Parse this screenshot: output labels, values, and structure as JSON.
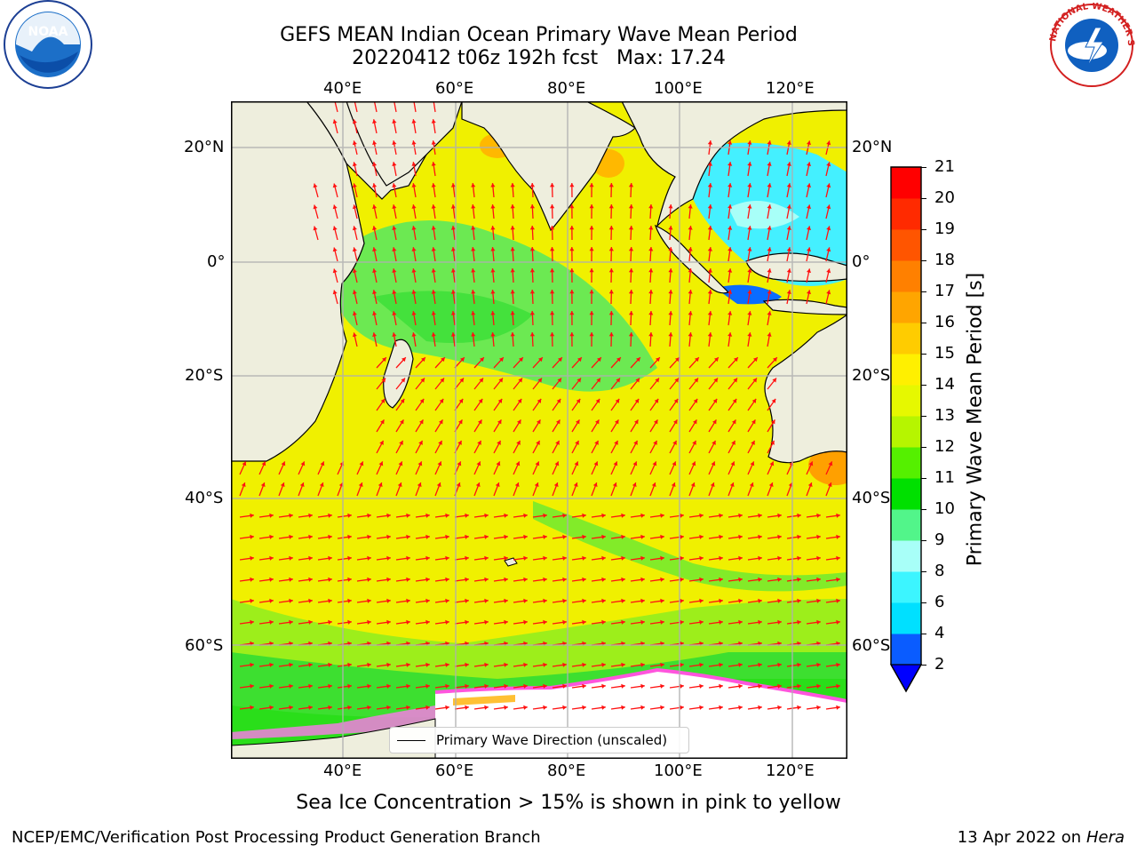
{
  "header": {
    "title_line1": "GEFS MEAN Indian Ocean Primary Wave Mean Period",
    "title_line2": "20220412 t06z 192h fcst   Max: 17.24"
  },
  "logos": {
    "left": "NOAA",
    "right": "NATIONAL WEATHER SERVICE"
  },
  "map": {
    "lon_labels": [
      "40°E",
      "60°E",
      "80°E",
      "100°E",
      "120°E"
    ],
    "lat_labels": [
      "20°N",
      "0°",
      "20°S",
      "40°S",
      "60°S"
    ],
    "legend_label": "Primary Wave Direction (unscaled)"
  },
  "colorbar": {
    "label": "Primary Wave Mean Period [s]",
    "ticks": [
      "2",
      "4",
      "6",
      "8",
      "9",
      "10",
      "11",
      "12",
      "13",
      "14",
      "15",
      "16",
      "17",
      "18",
      "19",
      "20",
      "21"
    ],
    "colors": [
      "#0a5cff",
      "#00e0ff",
      "#3cf5ff",
      "#a8fff8",
      "#52f58a",
      "#00e000",
      "#55f000",
      "#b6f500",
      "#e6f800",
      "#fff000",
      "#ffcc00",
      "#ffa500",
      "#ff8000",
      "#ff5500",
      "#ff2a00",
      "#ff0000"
    ],
    "extend_color": "#0000ff"
  },
  "footer": {
    "ice_note": "Sea Ice Concentration > 15% is shown in pink to yellow",
    "producer": "NCEP/EMC/Verification Post Processing Product Generation Branch",
    "date": "13 Apr 2022 on",
    "system": "Hera"
  }
}
